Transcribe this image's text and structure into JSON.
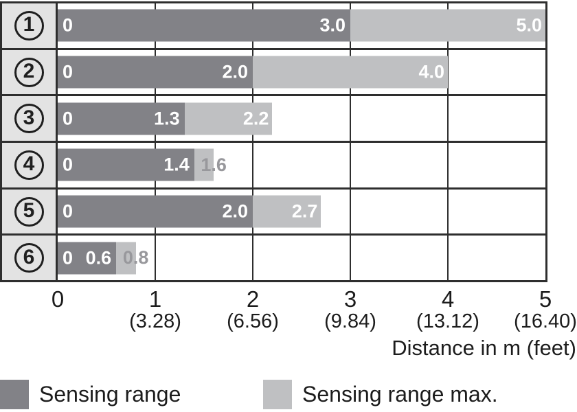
{
  "chart_data": {
    "type": "bar",
    "orientation": "horizontal-stacked",
    "xlabel": "Distance in m (feet)",
    "xlim": [
      0,
      5
    ],
    "grid": "vertical gridlines at 1,2,3,4; table-style row borders",
    "legend_position": "bottom",
    "series": [
      {
        "name": "Sensing range",
        "values": [
          3.0,
          2.0,
          1.3,
          1.4,
          2.0,
          0.6
        ]
      },
      {
        "name": "Sensing range max.",
        "values": [
          5.0,
          4.0,
          2.2,
          1.6,
          2.7,
          0.8
        ]
      }
    ],
    "rows": [
      {
        "num": "1",
        "zero": "0",
        "sensing_m": 3.0,
        "sensing_label": "3.0",
        "max_m": 5.0,
        "max_label": "5.0",
        "max_label_placement": "inside"
      },
      {
        "num": "2",
        "zero": "0",
        "sensing_m": 2.0,
        "sensing_label": "2.0",
        "max_m": 4.0,
        "max_label": "4.0",
        "max_label_placement": "inside"
      },
      {
        "num": "3",
        "zero": "0",
        "sensing_m": 1.3,
        "sensing_label": "1.3",
        "max_m": 2.2,
        "max_label": "2.2",
        "max_label_placement": "inside"
      },
      {
        "num": "4",
        "zero": "0",
        "sensing_m": 1.4,
        "sensing_label": "1.4",
        "max_m": 1.6,
        "max_label": "1.6",
        "max_label_placement": "outside"
      },
      {
        "num": "5",
        "zero": "0",
        "sensing_m": 2.0,
        "sensing_label": "2.0",
        "max_m": 2.7,
        "max_label": "2.7",
        "max_label_placement": "inside"
      },
      {
        "num": "6",
        "zero": "0",
        "sensing_m": 0.6,
        "sensing_label": "0.6",
        "max_m": 0.8,
        "max_label": "0.8",
        "max_label_placement": "outside"
      }
    ],
    "xticks": [
      {
        "value": 0,
        "m": "0",
        "feet": ""
      },
      {
        "value": 1,
        "m": "1",
        "feet": "(3.28)"
      },
      {
        "value": 2,
        "m": "2",
        "feet": "(6.56)"
      },
      {
        "value": 3,
        "m": "3",
        "feet": "(9.84)"
      },
      {
        "value": 4,
        "m": "4",
        "feet": "(13.12)"
      },
      {
        "value": 5,
        "m": "5",
        "feet": "(16.40)"
      }
    ],
    "legend": [
      {
        "label": "Sensing range",
        "color": "#828287"
      },
      {
        "label": "Sensing range max.",
        "color": "#bfc0c2"
      }
    ],
    "colors": {
      "sensing": "#828287",
      "max": "#bfc0c2",
      "row_header_bg": "#e3e3e3",
      "border": "#2e2e2e",
      "value_text": "#ffffff",
      "outside_value": "#98989c"
    }
  }
}
